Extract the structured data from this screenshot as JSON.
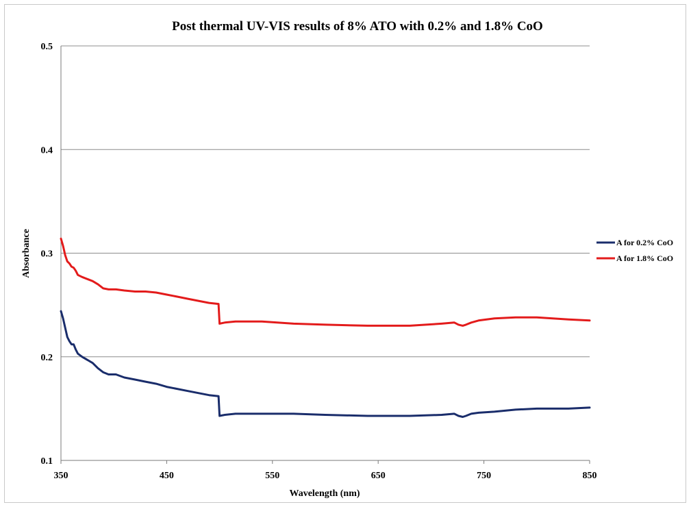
{
  "chart_data": {
    "type": "line",
    "title": "Post thermal UV-VIS results of 8% ATO with 0.2% and 1.8% CoO",
    "xlabel": "Wavelength (nm)",
    "ylabel": "Absorbance",
    "xlim": [
      350,
      850
    ],
    "ylim": [
      0.1,
      0.5
    ],
    "xticks": [
      "350",
      "450",
      "550",
      "650",
      "750",
      "850"
    ],
    "yticks": [
      "0.1",
      "0.2",
      "0.3",
      "0.4",
      "0.5"
    ],
    "grid": "horizontal",
    "legend_position": "right",
    "series": [
      {
        "name": "A for 0.2% CoO",
        "color": "#1a2d6b",
        "points": [
          [
            350,
            0.244
          ],
          [
            352,
            0.237
          ],
          [
            354,
            0.228
          ],
          [
            356,
            0.219
          ],
          [
            358,
            0.215
          ],
          [
            360,
            0.212
          ],
          [
            362,
            0.212
          ],
          [
            364,
            0.207
          ],
          [
            366,
            0.203
          ],
          [
            370,
            0.2
          ],
          [
            375,
            0.197
          ],
          [
            380,
            0.194
          ],
          [
            385,
            0.189
          ],
          [
            390,
            0.185
          ],
          [
            395,
            0.183
          ],
          [
            402,
            0.183
          ],
          [
            410,
            0.18
          ],
          [
            420,
            0.178
          ],
          [
            430,
            0.176
          ],
          [
            440,
            0.174
          ],
          [
            450,
            0.171
          ],
          [
            460,
            0.169
          ],
          [
            470,
            0.167
          ],
          [
            480,
            0.165
          ],
          [
            490,
            0.163
          ],
          [
            499,
            0.162
          ],
          [
            500,
            0.143
          ],
          [
            505,
            0.144
          ],
          [
            515,
            0.145
          ],
          [
            540,
            0.145
          ],
          [
            570,
            0.145
          ],
          [
            600,
            0.144
          ],
          [
            640,
            0.143
          ],
          [
            680,
            0.143
          ],
          [
            710,
            0.144
          ],
          [
            722,
            0.145
          ],
          [
            726,
            0.143
          ],
          [
            730,
            0.142
          ],
          [
            733,
            0.143
          ],
          [
            738,
            0.145
          ],
          [
            745,
            0.146
          ],
          [
            760,
            0.147
          ],
          [
            780,
            0.149
          ],
          [
            800,
            0.15
          ],
          [
            830,
            0.15
          ],
          [
            850,
            0.151
          ]
        ]
      },
      {
        "name": "A for 1.8% CoO",
        "color": "#e31b1b",
        "points": [
          [
            350,
            0.314
          ],
          [
            352,
            0.307
          ],
          [
            354,
            0.298
          ],
          [
            356,
            0.292
          ],
          [
            358,
            0.29
          ],
          [
            360,
            0.287
          ],
          [
            362,
            0.286
          ],
          [
            364,
            0.283
          ],
          [
            366,
            0.279
          ],
          [
            370,
            0.277
          ],
          [
            375,
            0.275
          ],
          [
            380,
            0.273
          ],
          [
            385,
            0.27
          ],
          [
            390,
            0.266
          ],
          [
            395,
            0.265
          ],
          [
            402,
            0.265
          ],
          [
            410,
            0.264
          ],
          [
            420,
            0.263
          ],
          [
            430,
            0.263
          ],
          [
            440,
            0.262
          ],
          [
            450,
            0.26
          ],
          [
            460,
            0.258
          ],
          [
            470,
            0.256
          ],
          [
            480,
            0.254
          ],
          [
            490,
            0.252
          ],
          [
            499,
            0.251
          ],
          [
            500,
            0.232
          ],
          [
            505,
            0.233
          ],
          [
            515,
            0.234
          ],
          [
            540,
            0.234
          ],
          [
            570,
            0.232
          ],
          [
            600,
            0.231
          ],
          [
            640,
            0.23
          ],
          [
            680,
            0.23
          ],
          [
            710,
            0.232
          ],
          [
            722,
            0.233
          ],
          [
            726,
            0.231
          ],
          [
            730,
            0.23
          ],
          [
            733,
            0.231
          ],
          [
            738,
            0.233
          ],
          [
            745,
            0.235
          ],
          [
            760,
            0.237
          ],
          [
            780,
            0.238
          ],
          [
            800,
            0.238
          ],
          [
            830,
            0.236
          ],
          [
            850,
            0.235
          ]
        ]
      }
    ]
  }
}
